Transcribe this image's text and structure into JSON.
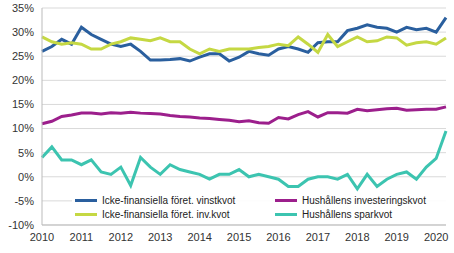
{
  "chart_data": {
    "type": "line",
    "categories": [
      "2010",
      null,
      null,
      null,
      "2011",
      null,
      null,
      null,
      "2012",
      null,
      null,
      null,
      "2013",
      null,
      null,
      null,
      "2014",
      null,
      null,
      null,
      "2015",
      null,
      null,
      null,
      "2016",
      null,
      null,
      null,
      "2017",
      null,
      null,
      null,
      "2018",
      null,
      null,
      null,
      "2019",
      null,
      null,
      null,
      "2020",
      null
    ],
    "series": [
      {
        "name": "Icke-finansiella föret. vinstkvot",
        "color": "#2a5f9e",
        "values": [
          26,
          27,
          28.5,
          27.5,
          31,
          29.5,
          28.5,
          27.5,
          27,
          27.5,
          26,
          24.2,
          24.2,
          24.3,
          24.5,
          24,
          24.8,
          25.5,
          25.5,
          24,
          24.8,
          26,
          25.5,
          25.2,
          26.5,
          27,
          26.5,
          25.8,
          27.8,
          28,
          28,
          30.3,
          30.8,
          31.5,
          31,
          30.8,
          30,
          31,
          30.5,
          30.8,
          30,
          33
        ]
      },
      {
        "name": "Hushållens investeringskvot",
        "color": "#9c1f8c",
        "values": [
          11,
          11.5,
          12.5,
          12.8,
          13.2,
          13.2,
          13,
          13.3,
          13.2,
          13.4,
          13.2,
          13.1,
          13,
          12.7,
          12.5,
          12.4,
          12.2,
          12.1,
          11.9,
          11.7,
          11.4,
          11.6,
          11.2,
          11.1,
          12.3,
          12,
          12.9,
          13.5,
          12.4,
          13.3,
          13.3,
          13.2,
          14,
          13.7,
          13.9,
          14.1,
          14.2,
          13.8,
          13.9,
          14,
          14,
          14.5
        ]
      },
      {
        "name": "Icke-finansiella föret. inv.kvot",
        "color": "#c5d843",
        "values": [
          29,
          28,
          27.5,
          27.8,
          27.5,
          26.5,
          26.5,
          27.5,
          28,
          28.8,
          28.5,
          28.2,
          28.8,
          28,
          28,
          26.5,
          25.5,
          26.5,
          26,
          26.5,
          26.5,
          26.5,
          26.8,
          27,
          27.5,
          27.2,
          29,
          27.5,
          25.8,
          29.5,
          27,
          28,
          29,
          28,
          28.2,
          29,
          28.8,
          27.3,
          27.8,
          28,
          27.5,
          28.8
        ]
      },
      {
        "name": "Hushållens sparkvot",
        "color": "#3cc4b0",
        "values": [
          4,
          6.2,
          3.5,
          3.5,
          2.5,
          3.5,
          1,
          0.5,
          2,
          -1.8,
          4,
          2,
          0.5,
          2.5,
          1.5,
          1,
          0.5,
          -0.5,
          0.5,
          0.5,
          1.5,
          0,
          0.5,
          0,
          -0.5,
          -2,
          -2,
          -0.5,
          0,
          0,
          -0.5,
          0.5,
          -2.5,
          0.5,
          -2,
          -0.5,
          0.5,
          1,
          -0.5,
          2,
          3.8,
          9.5
        ]
      }
    ],
    "ylim": [
      -10,
      35
    ],
    "yticks": [
      {
        "value": -10,
        "label": "-10%"
      },
      {
        "value": -5,
        "label": "-5%"
      },
      {
        "value": 0,
        "label": "0%"
      },
      {
        "value": 5,
        "label": "5%"
      },
      {
        "value": 10,
        "label": "10%"
      },
      {
        "value": 15,
        "label": "15%"
      },
      {
        "value": 20,
        "label": "20%"
      },
      {
        "value": 25,
        "label": "25%"
      },
      {
        "value": 30,
        "label": "30%"
      },
      {
        "value": 35,
        "label": "35%"
      }
    ],
    "grid": true
  }
}
